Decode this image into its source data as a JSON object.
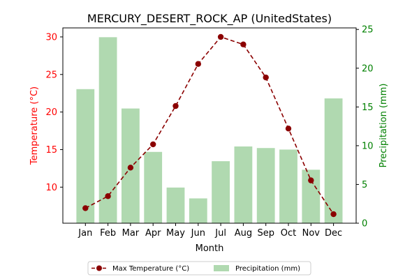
{
  "chart_data": {
    "type": "bar+line",
    "title": "MERCURY_DESERT_ROCK_AP (UnitedStates)",
    "xlabel": "Month",
    "categories": [
      "Jan",
      "Feb",
      "Mar",
      "Apr",
      "May",
      "Jun",
      "Jul",
      "Aug",
      "Sep",
      "Oct",
      "Nov",
      "Dec"
    ],
    "y_left": {
      "label": "Temperature (°C)",
      "range": [
        5.2,
        31.2
      ],
      "ticks": [
        10,
        15,
        20,
        25,
        30
      ],
      "color": "#ff0000"
    },
    "y_right": {
      "label": "Precipitation (mm)",
      "range": [
        0,
        25.2
      ],
      "ticks": [
        0,
        5,
        10,
        15,
        20,
        25
      ],
      "color": "#008000"
    },
    "series": [
      {
        "name": "Max Temperature (°C)",
        "type": "line",
        "axis": "left",
        "color": "#8b0000",
        "marker": "circle",
        "linestyle": "dashed",
        "values": [
          7.2,
          8.8,
          12.6,
          15.7,
          20.8,
          26.4,
          30.0,
          29.0,
          24.6,
          17.8,
          10.9,
          6.4
        ]
      },
      {
        "name": "Precipitation (mm)",
        "type": "bar",
        "axis": "right",
        "color": "#b0d9b0",
        "values": [
          17.3,
          24.0,
          14.8,
          9.2,
          4.6,
          3.2,
          8.0,
          9.9,
          9.7,
          9.5,
          6.9,
          16.1
        ]
      }
    ],
    "grid": false,
    "legend": {
      "placement": "bottom-center",
      "columns": 2
    }
  }
}
